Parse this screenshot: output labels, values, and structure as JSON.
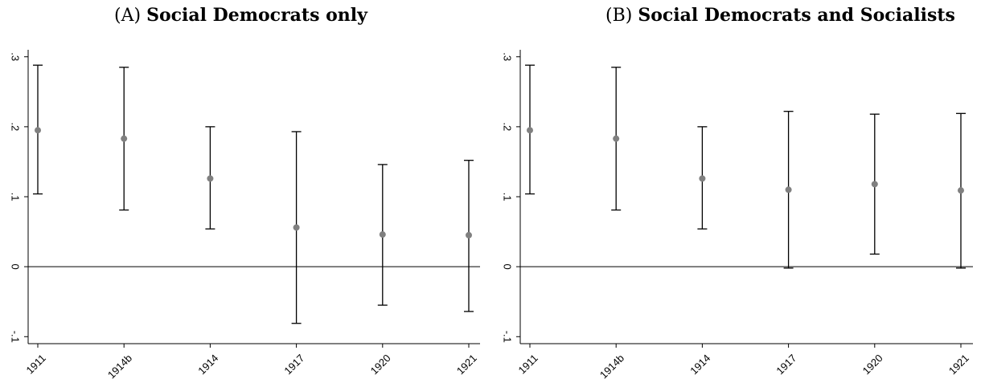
{
  "chart_data": [
    {
      "type": "scatter",
      "panel_tag": "(A)",
      "title": "Social Democrats only",
      "categories": [
        "1911",
        "1914b",
        "1914",
        "1917",
        "1920",
        "1921"
      ],
      "estimates": [
        0.195,
        0.183,
        0.126,
        0.056,
        0.046,
        0.045
      ],
      "ci_low": [
        0.104,
        0.081,
        0.054,
        -0.081,
        -0.055,
        -0.064
      ],
      "ci_high": [
        0.288,
        0.285,
        0.2,
        0.193,
        0.146,
        0.152
      ],
      "yticks": [
        ".3",
        ".2",
        ".1",
        "0",
        "-.1"
      ],
      "ytick_values": [
        0.3,
        0.2,
        0.1,
        0,
        -0.1
      ],
      "ylim": [
        -0.11,
        0.31
      ],
      "reference_line": 0,
      "grid": false,
      "colors": {
        "marker": "#808080",
        "line": "#000000"
      }
    },
    {
      "type": "scatter",
      "panel_tag": "(B)",
      "title": "Social Democrats and Socialists",
      "categories": [
        "1911",
        "1914b",
        "1914",
        "1917",
        "1920",
        "1921"
      ],
      "estimates": [
        0.195,
        0.183,
        0.126,
        0.11,
        0.118,
        0.109
      ],
      "ci_low": [
        0.104,
        0.081,
        0.054,
        -0.002,
        0.018,
        -0.002
      ],
      "ci_high": [
        0.288,
        0.285,
        0.2,
        0.222,
        0.218,
        0.219
      ],
      "yticks": [
        ".3",
        ".2",
        ".1",
        "0",
        "-.1"
      ],
      "ytick_values": [
        0.3,
        0.2,
        0.1,
        0,
        -0.1
      ],
      "ylim": [
        -0.11,
        0.31
      ],
      "reference_line": 0,
      "grid": false,
      "colors": {
        "marker": "#808080",
        "line": "#000000"
      }
    }
  ]
}
